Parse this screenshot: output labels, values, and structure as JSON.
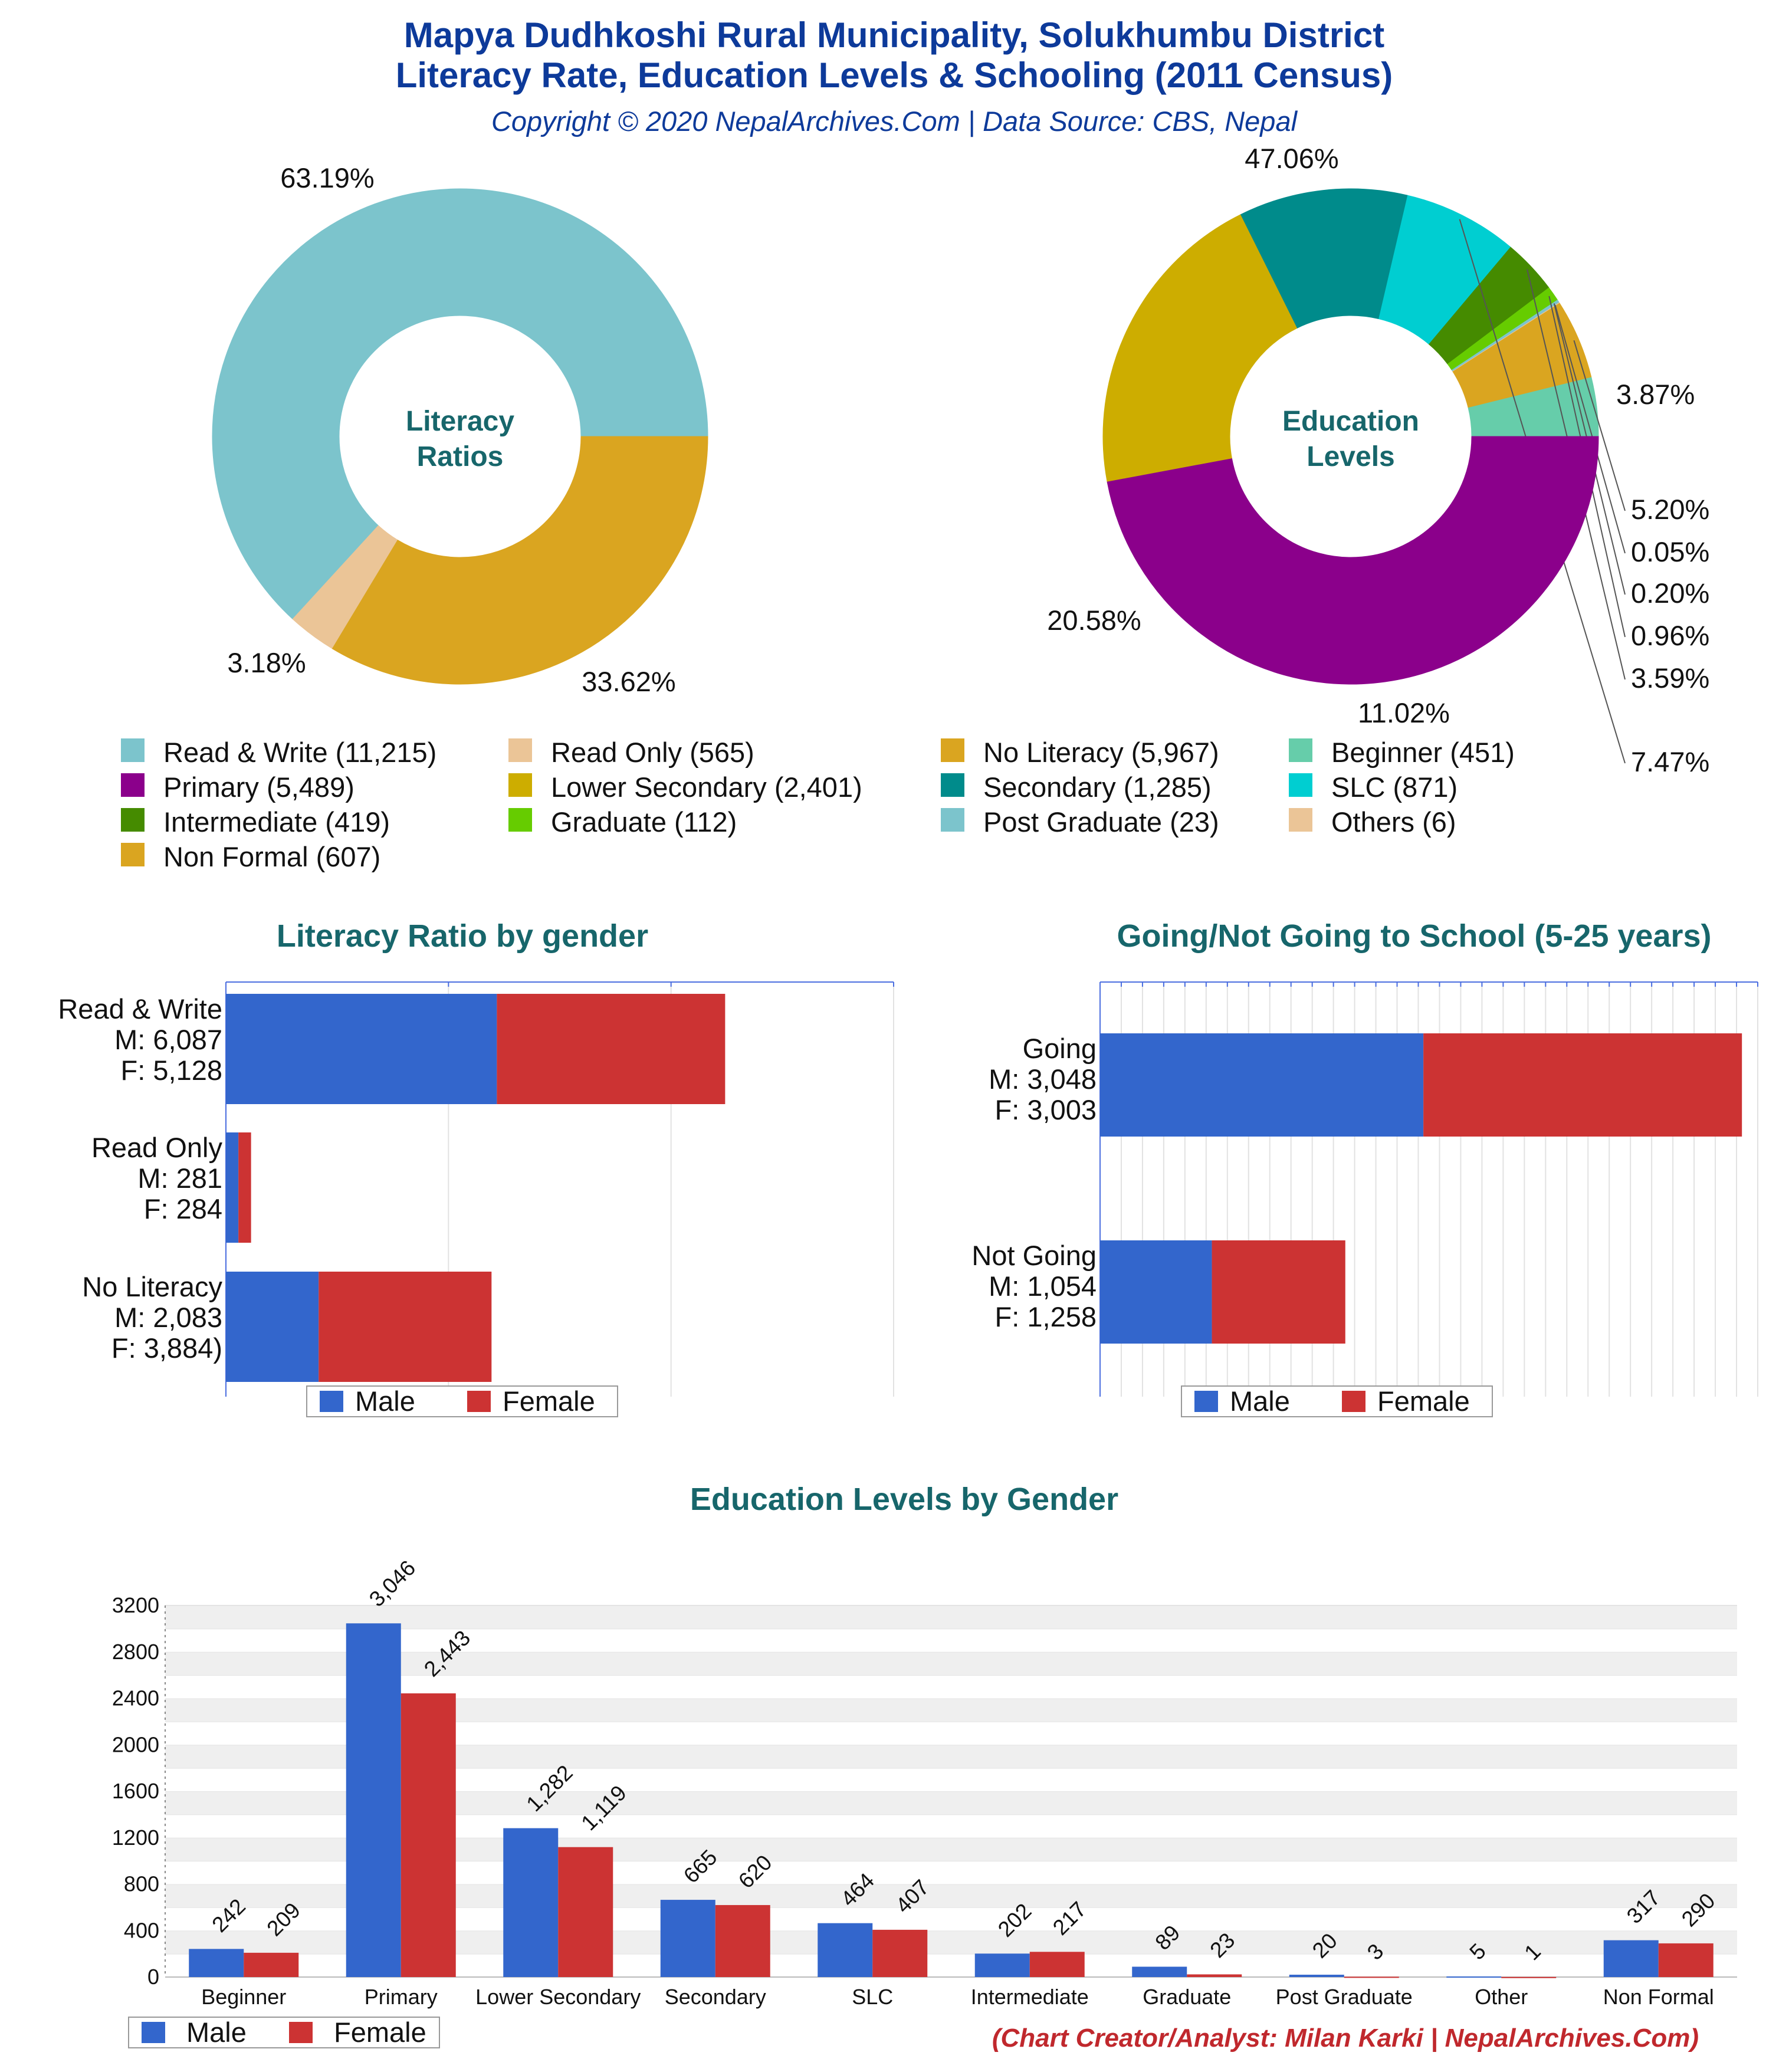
{
  "header": {
    "title_line1": "Mapya Dudhkoshi Rural Municipality, Solukhumbu District",
    "title_line2": "Literacy Rate, Education Levels & Schooling (2011 Census)",
    "copyright": "Copyright © 2020 NepalArchives.Com | Data Source: CBS, Nepal",
    "credit": "(Chart Creator/Analyst: Milan Karki | NepalArchives.Com)"
  },
  "colors": {
    "title": "#0d3a9a",
    "subtitle": "#0d3a9a",
    "section_title": "#17666b",
    "credit": "#c0282d",
    "male": "#3366cc",
    "female": "#cc3333"
  },
  "chart_data": [
    {
      "type": "pie",
      "center_label": [
        "Literacy",
        "Ratios"
      ],
      "donut": true,
      "slices": [
        {
          "label": "Read & Write (11,215)",
          "value": 11215,
          "percent_label": "63.19%",
          "color": "#7cc4cc"
        },
        {
          "label": "Read Only (565)",
          "value": 565,
          "percent_label": "3.18%",
          "color": "#ebc597"
        },
        {
          "label": "No Literacy (5,967)",
          "value": 5967,
          "percent_label": "33.62%",
          "color": "#daa520"
        }
      ]
    },
    {
      "type": "pie",
      "center_label": [
        "Education",
        "Levels"
      ],
      "donut": true,
      "slices": [
        {
          "label": "Beginner (451)",
          "value": 451,
          "percent_label": "3.87%",
          "color": "#66cdaa"
        },
        {
          "label": "Non Formal (607)",
          "value": 607,
          "percent_label": "5.20%",
          "color": "#daa520"
        },
        {
          "label": "Others (6)",
          "value": 6,
          "percent_label": "0.05%",
          "color": "#ebc597"
        },
        {
          "label": "Post Graduate (23)",
          "value": 23,
          "percent_label": "0.20%",
          "color": "#7cc4cc"
        },
        {
          "label": "Graduate (112)",
          "value": 112,
          "percent_label": "0.96%",
          "color": "#66cc00"
        },
        {
          "label": "Intermediate (419)",
          "value": 419,
          "percent_label": "3.59%",
          "color": "#458b00"
        },
        {
          "label": "SLC (871)",
          "value": 871,
          "percent_label": "7.47%",
          "color": "#00ced1"
        },
        {
          "label": "Secondary (1,285)",
          "value": 1285,
          "percent_label": "11.02%",
          "color": "#008b8b"
        },
        {
          "label": "Lower Secondary (2,401)",
          "value": 2401,
          "percent_label": "20.58%",
          "color": "#cdad00"
        },
        {
          "label": "Primary (5,489)",
          "value": 5489,
          "percent_label": "47.06%",
          "color": "#8b008b"
        }
      ]
    },
    {
      "type": "bar",
      "orientation": "horizontal",
      "stacked": true,
      "title": "Literacy Ratio by gender",
      "categories": [
        [
          "Read & Write",
          "M: 6,087",
          "F: 5,128"
        ],
        [
          "Read Only",
          "M: 281",
          "F: 284"
        ],
        [
          "No Literacy",
          "M: 2,083",
          "F: 3,884)"
        ]
      ],
      "series": [
        {
          "name": "Male",
          "values": [
            6087,
            281,
            2083
          ]
        },
        {
          "name": "Female",
          "values": [
            5128,
            284,
            3884
          ]
        }
      ],
      "xlim": [
        0,
        15000
      ],
      "grid": true,
      "legend": "bottom"
    },
    {
      "type": "bar",
      "orientation": "horizontal",
      "stacked": true,
      "title": "Going/Not Going to School (5-25 years)",
      "categories": [
        [
          "Going",
          "M: 3,048",
          "F: 3,003"
        ],
        [
          "Not Going",
          "M: 1,054",
          "F: 1,258"
        ]
      ],
      "series": [
        {
          "name": "Male",
          "values": [
            3048,
            1054
          ]
        },
        {
          "name": "Female",
          "values": [
            3003,
            1258
          ]
        }
      ],
      "xlim": [
        0,
        6200
      ],
      "grid": true,
      "legend": "bottom"
    },
    {
      "type": "bar",
      "title": "Education Levels by Gender",
      "categories": [
        "Beginner",
        "Primary",
        "Lower Secondary",
        "Secondary",
        "SLC",
        "Intermediate",
        "Graduate",
        "Post Graduate",
        "Other",
        "Non Formal"
      ],
      "series": [
        {
          "name": "Male",
          "values": [
            242,
            3046,
            1282,
            665,
            464,
            202,
            89,
            20,
            5,
            317
          ]
        },
        {
          "name": "Female",
          "values": [
            209,
            2443,
            1119,
            620,
            407,
            217,
            23,
            3,
            1,
            290
          ]
        }
      ],
      "value_labels": {
        "Male": [
          "242",
          "3,046",
          "1,282",
          "665",
          "464",
          "202",
          "89",
          "20",
          "5",
          "317"
        ],
        "Female": [
          "209",
          "2,443",
          "1,119",
          "620",
          "407",
          "217",
          "23",
          "3",
          "1",
          "290"
        ]
      },
      "ylim": [
        0,
        3200
      ],
      "yticks": [
        "0",
        "400",
        "800",
        "1200",
        "1600",
        "2000",
        "2400",
        "2800",
        "3200"
      ],
      "grid": true,
      "legend": "bottom-left"
    }
  ],
  "legend_grid": [
    {
      "label": "Read & Write (11,215)",
      "color": "#7cc4cc"
    },
    {
      "label": "Read Only (565)",
      "color": "#ebc597"
    },
    {
      "label": "No Literacy (5,967)",
      "color": "#daa520"
    },
    {
      "label": "Beginner (451)",
      "color": "#66cdaa"
    },
    {
      "label": "Primary (5,489)",
      "color": "#8b008b"
    },
    {
      "label": "Lower Secondary (2,401)",
      "color": "#cdad00"
    },
    {
      "label": "Secondary (1,285)",
      "color": "#008b8b"
    },
    {
      "label": "SLC (871)",
      "color": "#00ced1"
    },
    {
      "label": "Intermediate (419)",
      "color": "#458b00"
    },
    {
      "label": "Graduate (112)",
      "color": "#66cc00"
    },
    {
      "label": "Post Graduate (23)",
      "color": "#7cc4cc"
    },
    {
      "label": "Others (6)",
      "color": "#ebc597"
    },
    {
      "label": "Non Formal (607)",
      "color": "#daa520"
    }
  ]
}
